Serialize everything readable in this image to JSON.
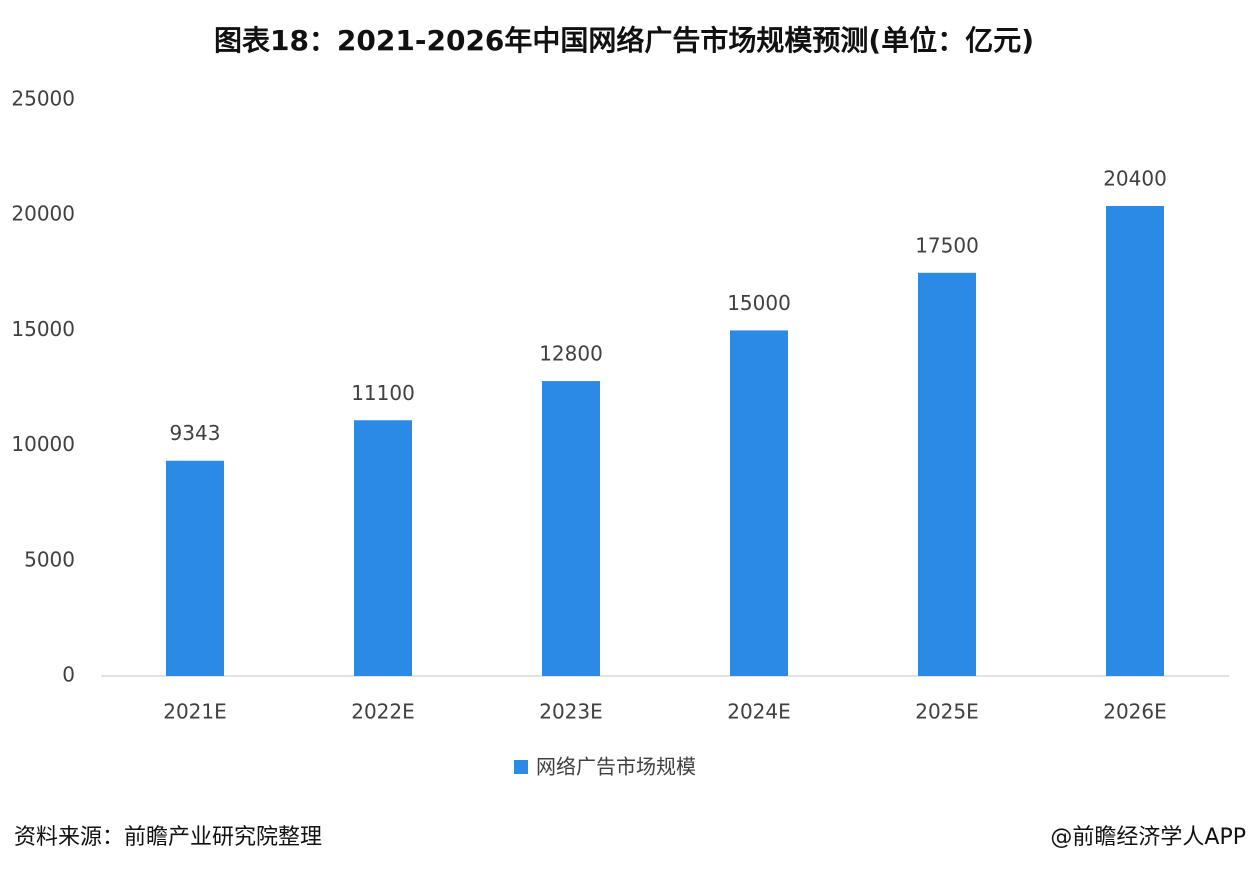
{
  "chart_data": {
    "type": "bar",
    "title": "图表18：2021-2026年中国网络广告市场规模预测(单位：亿元)",
    "categories": [
      "2021E",
      "2022E",
      "2023E",
      "2024E",
      "2025E",
      "2026E"
    ],
    "series": [
      {
        "name": "网络广告市场规模",
        "color": "#2a8ae6",
        "values": [
          9343,
          11100,
          12800,
          15000,
          17500,
          20400
        ]
      }
    ],
    "ylim": [
      0,
      25000
    ],
    "yticks": [
      0,
      5000,
      10000,
      15000,
      20000,
      25000
    ],
    "grid": false,
    "legend": "bottom",
    "source": "资料来源：前瞻产业研究院整理",
    "credit": "@前瞻经济学人APP"
  }
}
